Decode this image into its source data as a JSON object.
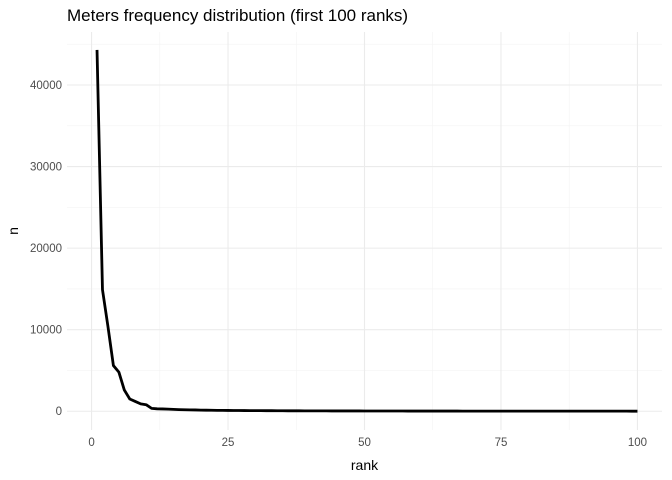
{
  "chart_data": {
    "type": "line",
    "title": "Meters frequency distribution (first 100 ranks)",
    "xlabel": "rank",
    "ylabel": "n",
    "xlim": [
      -4.5,
      104.5
    ],
    "ylim": [
      -2300,
      46500
    ],
    "x_ticks": [
      0,
      25,
      50,
      75,
      100
    ],
    "y_ticks": [
      0,
      10000,
      20000,
      30000,
      40000
    ],
    "x_tick_labels": [
      "0",
      "25",
      "50",
      "75",
      "100"
    ],
    "y_tick_labels": [
      "0",
      "10000",
      "20000",
      "30000",
      "40000"
    ],
    "grid": true,
    "series": [
      {
        "color": "#000000",
        "x": [
          1,
          2,
          3,
          4,
          5,
          6,
          7,
          8,
          9,
          10,
          11,
          12,
          13,
          14,
          15,
          16,
          17,
          18,
          19,
          20,
          21,
          22,
          23,
          24,
          25,
          26,
          27,
          28,
          29,
          30,
          31,
          32,
          33,
          34,
          35,
          36,
          37,
          38,
          39,
          40,
          41,
          42,
          43,
          44,
          45,
          46,
          47,
          48,
          49,
          50,
          51,
          52,
          53,
          54,
          55,
          56,
          57,
          58,
          59,
          60,
          61,
          62,
          63,
          64,
          65,
          66,
          67,
          68,
          69,
          70,
          71,
          72,
          73,
          74,
          75,
          76,
          77,
          78,
          79,
          80,
          81,
          82,
          83,
          84,
          85,
          86,
          87,
          88,
          89,
          90,
          91,
          92,
          93,
          94,
          95,
          96,
          97,
          98,
          99,
          100
        ],
        "y": [
          44300,
          14900,
          10400,
          5600,
          4800,
          2600,
          1500,
          1200,
          900,
          800,
          350,
          300,
          280,
          260,
          230,
          200,
          180,
          170,
          160,
          140,
          130,
          120,
          110,
          105,
          100,
          95,
          90,
          85,
          80,
          76,
          72,
          68,
          65,
          62,
          59,
          56,
          53,
          51,
          49,
          47,
          45,
          43,
          41,
          39,
          38,
          37,
          36,
          35,
          34,
          33,
          32,
          31,
          30,
          29,
          28,
          27,
          26,
          25,
          24,
          24,
          23,
          22,
          22,
          21,
          21,
          20,
          20,
          19,
          19,
          18,
          18,
          17,
          17,
          16,
          16,
          16,
          15,
          15,
          15,
          14,
          14,
          14,
          13,
          13,
          13,
          12,
          12,
          12,
          12,
          11,
          11,
          11,
          11,
          10,
          10,
          10,
          10,
          10,
          9,
          9
        ]
      }
    ]
  }
}
